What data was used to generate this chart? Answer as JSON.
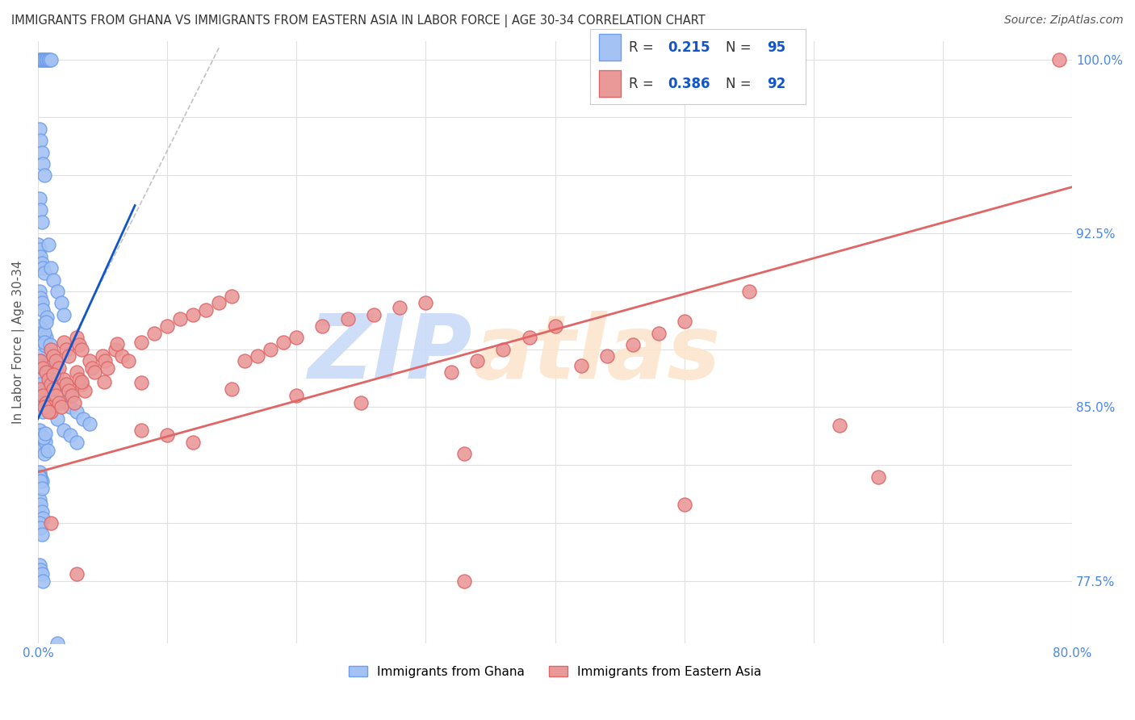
{
  "title": "IMMIGRANTS FROM GHANA VS IMMIGRANTS FROM EASTERN ASIA IN LABOR FORCE | AGE 30-34 CORRELATION CHART",
  "source": "Source: ZipAtlas.com",
  "ylabel": "In Labor Force | Age 30-34",
  "xlim": [
    0.0,
    0.8
  ],
  "ylim": [
    0.748,
    1.008
  ],
  "x_ticks": [
    0.0,
    0.1,
    0.2,
    0.3,
    0.4,
    0.5,
    0.6,
    0.7,
    0.8
  ],
  "y_ticks": [
    0.775,
    0.8,
    0.825,
    0.85,
    0.875,
    0.9,
    0.925,
    0.95,
    0.975,
    1.0
  ],
  "ghana_color": "#a4c2f4",
  "eastern_asia_color": "#ea9999",
  "ghana_edge_color": "#6d9eeb",
  "eastern_asia_edge_color": "#e06666",
  "ghana_R": "0.215",
  "ghana_N": "95",
  "eastern_asia_R": "0.386",
  "eastern_asia_N": "92",
  "blue_color": "#1155cc",
  "pink_color": "#e06666",
  "text_color": "#333333",
  "tick_color": "#4a86e8",
  "watermark_zip_color": "#c9daf8",
  "watermark_atlas_color": "#fce5cd",
  "background_color": "#ffffff",
  "grid_color": "#e0e0e0",
  "ghana_line_x0": 0.0,
  "ghana_line_x1": 0.075,
  "ghana_line_y0": 0.845,
  "ghana_line_y1": 0.937,
  "eastern_asia_line_x0": 0.0,
  "eastern_asia_line_x1": 0.8,
  "eastern_asia_line_y0": 0.822,
  "eastern_asia_line_y1": 0.945
}
